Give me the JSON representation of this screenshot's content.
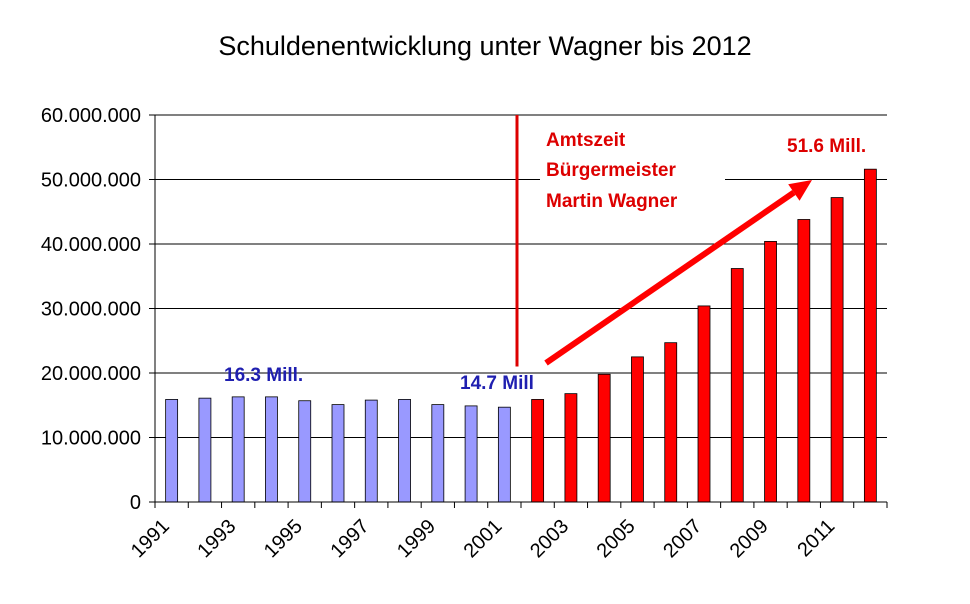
{
  "chart_data": {
    "type": "bar",
    "title": "Schuldenentwicklung unter Wagner bis 2012",
    "xlabel": "",
    "ylabel": "",
    "ylim": [
      0,
      60000000
    ],
    "y_ticks": [
      0,
      10000000,
      20000000,
      30000000,
      40000000,
      50000000,
      60000000
    ],
    "y_tick_labels": [
      "0",
      "10.000.000",
      "20.000.000",
      "30.000.000",
      "40.000.000",
      "50.000.000",
      "60.000.000"
    ],
    "x_tick_labels": [
      "1991",
      "1993",
      "1995",
      "1997",
      "1999",
      "2001",
      "2003",
      "2005",
      "2007",
      "2009",
      "2011"
    ],
    "grid": true,
    "legend": "none",
    "categories": [
      "1991",
      "1992",
      "1993",
      "1994",
      "1995",
      "1996",
      "1997",
      "1998",
      "1999",
      "2000",
      "2001",
      "2002",
      "2003",
      "2004",
      "2005",
      "2006",
      "2007",
      "2008",
      "2009",
      "2010",
      "2011",
      "2012"
    ],
    "values": [
      15900000,
      16100000,
      16300000,
      16300000,
      15700000,
      15100000,
      15800000,
      15900000,
      15100000,
      14900000,
      14700000,
      15900000,
      16800000,
      19800000,
      22500000,
      24700000,
      30400000,
      36200000,
      40400000,
      43800000,
      47200000,
      51600000
    ],
    "colors": {
      "before": "#9999ff",
      "during": "#ff0000",
      "edge": "#000000",
      "grid": "#000000",
      "arrow": "#ff0000",
      "marker": "#dd0000",
      "text_blue": "#1f1fb0",
      "text_red": "#dd0000"
    },
    "term_start_index": 11,
    "annotations": {
      "peak_before": "16.3 Mill.",
      "before_term": "14.7 Mill",
      "term_line1": "Amtszeit",
      "term_line2": "Bürgermeister",
      "term_line3": "Martin Wagner",
      "final": "51.6 Mill."
    }
  }
}
